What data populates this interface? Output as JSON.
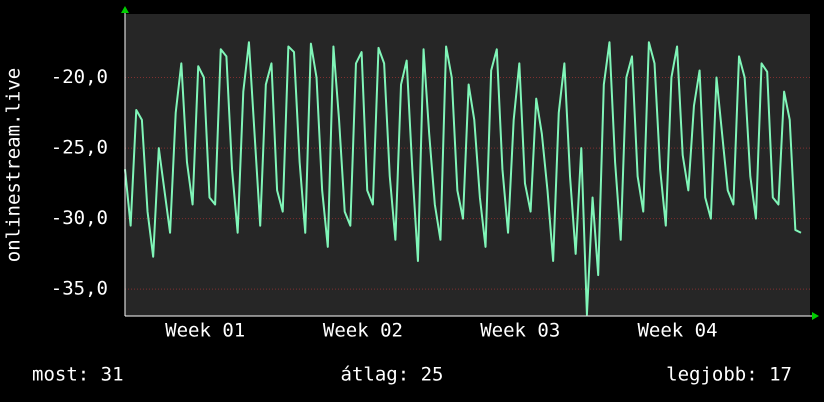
{
  "chart_data": {
    "type": "line",
    "y_label": "onlinestream.live",
    "x": [
      0,
      0.25,
      0.5,
      0.75,
      1,
      1.25,
      1.5,
      1.75,
      2,
      2.25,
      2.5,
      2.75,
      3,
      3.25,
      3.5,
      3.75,
      4,
      4.25,
      4.5,
      4.75,
      5,
      5.25,
      5.5,
      5.75,
      6,
      6.25,
      6.5,
      6.75,
      7,
      7.25,
      7.5,
      7.75,
      8,
      8.25,
      8.5,
      8.75,
      9,
      9.25,
      9.5,
      9.75,
      10,
      10.25,
      10.5,
      10.75,
      11,
      11.25,
      11.5,
      11.75,
      12,
      12.25,
      12.5,
      12.75,
      13,
      13.25,
      13.5,
      13.75,
      14,
      14.25,
      14.5,
      14.75,
      15,
      15.25,
      15.5,
      15.75,
      16,
      16.25,
      16.5,
      16.75,
      17,
      17.25,
      17.5,
      17.75,
      18,
      18.25,
      18.5,
      18.75,
      19,
      19.25,
      19.5,
      19.75,
      20,
      20.25,
      20.5,
      20.75,
      21,
      21.25,
      21.5,
      21.75,
      22,
      22.25,
      22.5,
      22.75,
      23,
      23.25,
      23.5,
      23.75,
      24,
      24.25,
      24.5,
      24.75,
      25,
      25.25,
      25.5,
      25.75,
      26,
      26.25,
      26.5,
      26.75,
      27,
      27.25,
      27.5,
      27.75,
      28,
      28.25,
      28.5,
      28.75,
      29,
      29.25,
      29.5,
      29.75,
      30
    ],
    "series": [
      {
        "name": "onlinestream.live",
        "color": "#80f5b8",
        "values": [
          -26.5,
          -30.5,
          -22.3,
          -23.0,
          -29.5,
          -32.7,
          -25.0,
          -28.0,
          -31.0,
          -22.5,
          -19.0,
          -26.0,
          -29.0,
          -19.2,
          -20.0,
          -28.5,
          -29.0,
          -18.0,
          -18.5,
          -26.5,
          -31.0,
          -21.0,
          -17.5,
          -24.0,
          -30.5,
          -20.5,
          -19.0,
          -28.0,
          -29.5,
          -17.8,
          -18.2,
          -26.0,
          -31.0,
          -17.6,
          -20.0,
          -28.0,
          -32.0,
          -17.8,
          -23.0,
          -29.5,
          -30.5,
          -19.0,
          -18.2,
          -28.0,
          -29.0,
          -17.9,
          -19.0,
          -27.0,
          -31.5,
          -20.5,
          -18.8,
          -26.5,
          -33.0,
          -18.0,
          -24.0,
          -29.0,
          -31.5,
          -17.8,
          -20.0,
          -28.0,
          -30.0,
          -20.5,
          -23.0,
          -28.5,
          -32.0,
          -19.5,
          -18.0,
          -26.5,
          -31.0,
          -23.0,
          -19.0,
          -27.5,
          -29.5,
          -21.5,
          -24.0,
          -28.0,
          -33.0,
          -22.5,
          -19.0,
          -27.0,
          -32.5,
          -25.0,
          -36.8,
          -28.5,
          -34.0,
          -20.5,
          -17.5,
          -26.0,
          -31.5,
          -20.0,
          -18.5,
          -27.0,
          -29.5,
          -17.5,
          -19.0,
          -26.5,
          -30.5,
          -20.0,
          -17.8,
          -25.5,
          -28.0,
          -22.0,
          -19.5,
          -28.5,
          -30.0,
          -20.0,
          -24.0,
          -28.0,
          -29.0,
          -18.5,
          -20.0,
          -27.0,
          -30.0,
          -19.0,
          -19.6,
          -28.5,
          -29.0,
          -21.0,
          -23.0,
          -30.8,
          -31.0
        ]
      }
    ],
    "xlim": [
      0,
      30.4
    ],
    "xticks": [
      {
        "value": 3.56,
        "label": "Week 01"
      },
      {
        "value": 10.56,
        "label": "Week 02"
      },
      {
        "value": 17.54,
        "label": "Week 03"
      },
      {
        "value": 24.52,
        "label": "Week 04"
      }
    ],
    "ylim": [
      -36.9,
      -15.5
    ],
    "yticks": [
      {
        "value": -35,
        "label": "-35,0"
      },
      {
        "value": -30,
        "label": "-30,0"
      },
      {
        "value": -25,
        "label": "-25,0"
      },
      {
        "value": -20,
        "label": "-20,0"
      }
    ],
    "grid": true
  },
  "footer": {
    "current": "most: 31",
    "average": "átlag: 25",
    "best": "legjobb: 17"
  }
}
